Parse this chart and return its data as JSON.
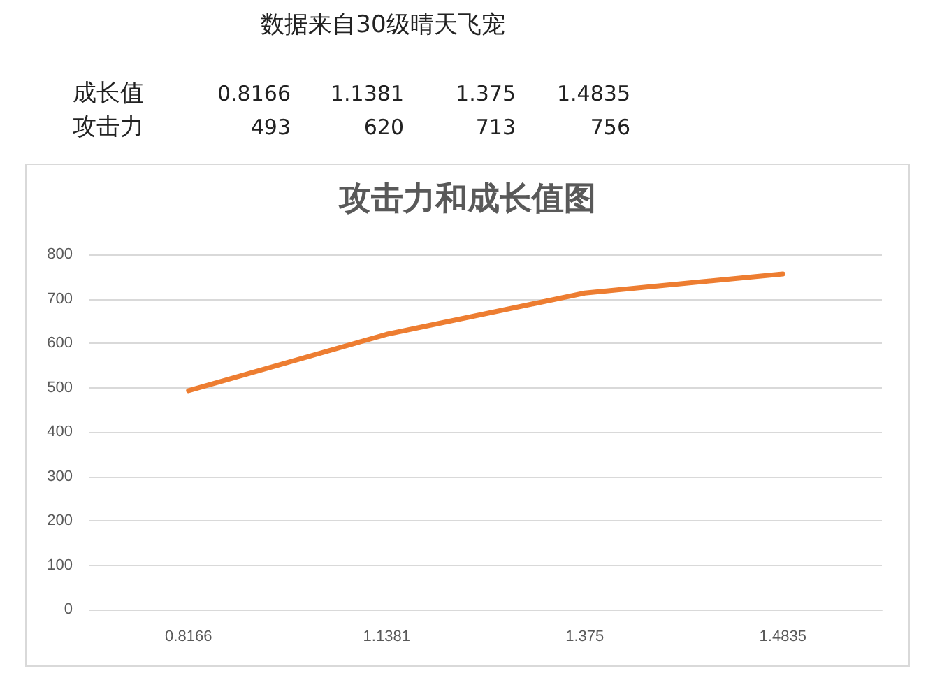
{
  "chart_data": {
    "type": "line",
    "title": "攻击力和成长值图",
    "categories": [
      "0.8166",
      "1.1381",
      "1.375",
      "1.4835"
    ],
    "series": [
      {
        "color": "#ed7d31",
        "values": [
          493,
          620,
          713,
          756
        ]
      }
    ],
    "ylim": [
      0,
      800
    ],
    "yticks": [
      0,
      100,
      200,
      300,
      400,
      500,
      600,
      700,
      800
    ],
    "grid": "y",
    "marker": "none",
    "line_style": "solid",
    "annotations": [
      "数据来自30级晴天飞宠",
      "成长值",
      "攻击力",
      "493",
      "620",
      "713",
      "756"
    ]
  }
}
